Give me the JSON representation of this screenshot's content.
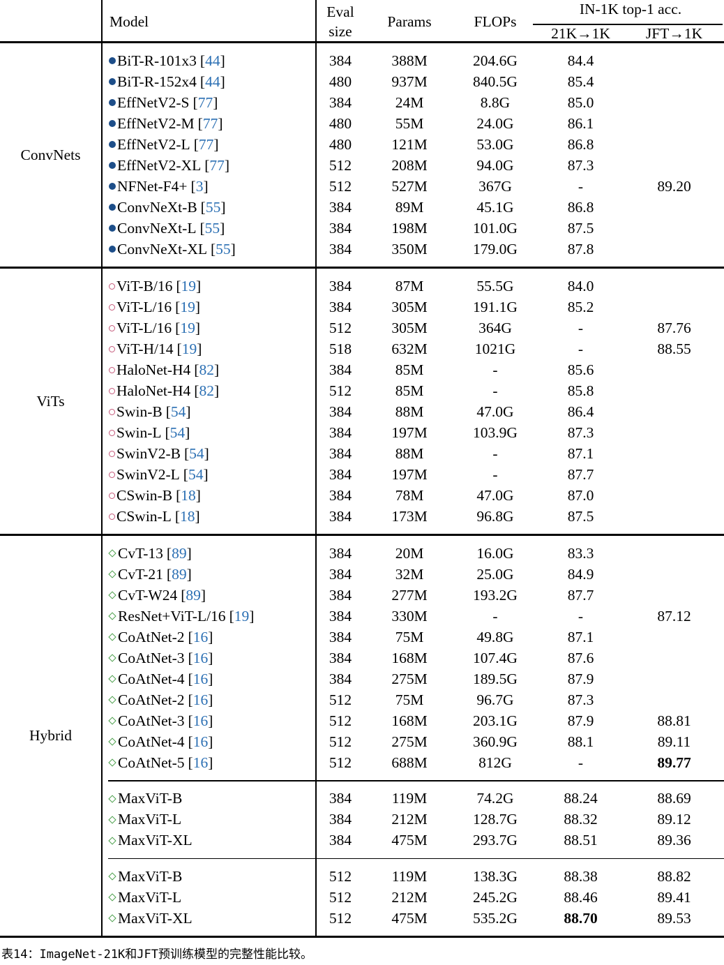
{
  "header": {
    "model": "Model",
    "eval1": "Eval",
    "eval2": "size",
    "params": "Params",
    "flops": "FLOPs",
    "acc_title": "IN-1K top-1 acc.",
    "col_21k": "21K→1K",
    "col_jft": "JFT→1K"
  },
  "colors": {
    "convnet_marker": "#1d4e89",
    "vit_marker": "#c5597a",
    "hybrid_marker": "#4ca04c",
    "citation": "#2b6fb3",
    "text": "#000000"
  },
  "groups": [
    {
      "label": "ConvNets",
      "marker": "convnet",
      "blocks": [
        [
          {
            "model": "BiT-R-101x3",
            "cite": "44",
            "eval": "384",
            "params": "388M",
            "flops": "204.6G",
            "acc21k": "84.4",
            "accjft": ""
          },
          {
            "model": "BiT-R-152x4",
            "cite": "44",
            "eval": "480",
            "params": "937M",
            "flops": "840.5G",
            "acc21k": "85.4",
            "accjft": ""
          },
          {
            "model": "EffNetV2-S",
            "cite": "77",
            "eval": "384",
            "params": "24M",
            "flops": "8.8G",
            "acc21k": "85.0",
            "accjft": ""
          },
          {
            "model": "EffNetV2-M",
            "cite": "77",
            "eval": "480",
            "params": "55M",
            "flops": "24.0G",
            "acc21k": "86.1",
            "accjft": ""
          },
          {
            "model": "EffNetV2-L",
            "cite": "77",
            "eval": "480",
            "params": "121M",
            "flops": "53.0G",
            "acc21k": "86.8",
            "accjft": ""
          },
          {
            "model": "EffNetV2-XL",
            "cite": "77",
            "eval": "512",
            "params": "208M",
            "flops": "94.0G",
            "acc21k": "87.3",
            "accjft": ""
          },
          {
            "model": "NFNet-F4+",
            "cite": "3",
            "eval": "512",
            "params": "527M",
            "flops": "367G",
            "acc21k": "-",
            "accjft": "89.20"
          },
          {
            "model": "ConvNeXt-B",
            "cite": "55",
            "eval": "384",
            "params": "89M",
            "flops": "45.1G",
            "acc21k": "86.8",
            "accjft": ""
          },
          {
            "model": "ConvNeXt-L",
            "cite": "55",
            "eval": "384",
            "params": "198M",
            "flops": "101.0G",
            "acc21k": "87.5",
            "accjft": ""
          },
          {
            "model": "ConvNeXt-XL",
            "cite": "55",
            "eval": "384",
            "params": "350M",
            "flops": "179.0G",
            "acc21k": "87.8",
            "accjft": ""
          }
        ]
      ]
    },
    {
      "label": "ViTs",
      "marker": "vit",
      "blocks": [
        [
          {
            "model": "ViT-B/16",
            "cite": "19",
            "eval": "384",
            "params": "87M",
            "flops": "55.5G",
            "acc21k": "84.0",
            "accjft": ""
          },
          {
            "model": "ViT-L/16",
            "cite": "19",
            "eval": "384",
            "params": "305M",
            "flops": "191.1G",
            "acc21k": "85.2",
            "accjft": ""
          },
          {
            "model": "ViT-L/16",
            "cite": "19",
            "eval": "512",
            "params": "305M",
            "flops": "364G",
            "acc21k": "-",
            "accjft": "87.76"
          },
          {
            "model": "ViT-H/14",
            "cite": "19",
            "eval": "518",
            "params": "632M",
            "flops": "1021G",
            "acc21k": "-",
            "accjft": "88.55"
          },
          {
            "model": "HaloNet-H4",
            "cite": "82",
            "eval": "384",
            "params": "85M",
            "flops": "-",
            "acc21k": "85.6",
            "accjft": ""
          },
          {
            "model": "HaloNet-H4",
            "cite": "82",
            "eval": "512",
            "params": "85M",
            "flops": "-",
            "acc21k": "85.8",
            "accjft": ""
          },
          {
            "model": "Swin-B",
            "cite": "54",
            "eval": "384",
            "params": "88M",
            "flops": "47.0G",
            "acc21k": "86.4",
            "accjft": ""
          },
          {
            "model": "Swin-L",
            "cite": "54",
            "eval": "384",
            "params": "197M",
            "flops": "103.9G",
            "acc21k": "87.3",
            "accjft": ""
          },
          {
            "model": "SwinV2-B",
            "cite": "54",
            "eval": "384",
            "params": "88M",
            "flops": "-",
            "acc21k": "87.1",
            "accjft": ""
          },
          {
            "model": "SwinV2-L",
            "cite": "54",
            "eval": "384",
            "params": "197M",
            "flops": "-",
            "acc21k": "87.7",
            "accjft": ""
          },
          {
            "model": "CSwin-B",
            "cite": "18",
            "eval": "384",
            "params": "78M",
            "flops": "47.0G",
            "acc21k": "87.0",
            "accjft": ""
          },
          {
            "model": "CSwin-L",
            "cite": "18",
            "eval": "384",
            "params": "173M",
            "flops": "96.8G",
            "acc21k": "87.5",
            "accjft": ""
          }
        ]
      ]
    },
    {
      "label": "Hybrid",
      "marker": "hybrid",
      "blocks": [
        [
          {
            "model": "CvT-13",
            "cite": "89",
            "eval": "384",
            "params": "20M",
            "flops": "16.0G",
            "acc21k": "83.3",
            "accjft": ""
          },
          {
            "model": "CvT-21",
            "cite": "89",
            "eval": "384",
            "params": "32M",
            "flops": "25.0G",
            "acc21k": "84.9",
            "accjft": ""
          },
          {
            "model": "CvT-W24",
            "cite": "89",
            "eval": "384",
            "params": "277M",
            "flops": "193.2G",
            "acc21k": "87.7",
            "accjft": ""
          },
          {
            "model": "ResNet+ViT-L/16",
            "cite": "19",
            "eval": "384",
            "params": "330M",
            "flops": "-",
            "acc21k": "-",
            "accjft": "87.12"
          },
          {
            "model": "CoAtNet-2",
            "cite": "16",
            "eval": "384",
            "params": "75M",
            "flops": "49.8G",
            "acc21k": "87.1",
            "accjft": ""
          },
          {
            "model": "CoAtNet-3",
            "cite": "16",
            "eval": "384",
            "params": "168M",
            "flops": "107.4G",
            "acc21k": "87.6",
            "accjft": ""
          },
          {
            "model": "CoAtNet-4",
            "cite": "16",
            "eval": "384",
            "params": "275M",
            "flops": "189.5G",
            "acc21k": "87.9",
            "accjft": ""
          },
          {
            "model": "CoAtNet-2",
            "cite": "16",
            "eval": "512",
            "params": "75M",
            "flops": "96.7G",
            "acc21k": "87.3",
            "accjft": ""
          },
          {
            "model": "CoAtNet-3",
            "cite": "16",
            "eval": "512",
            "params": "168M",
            "flops": "203.1G",
            "acc21k": "87.9",
            "accjft": "88.81"
          },
          {
            "model": "CoAtNet-4",
            "cite": "16",
            "eval": "512",
            "params": "275M",
            "flops": "360.9G",
            "acc21k": "88.1",
            "accjft": "89.11"
          },
          {
            "model": "CoAtNet-5",
            "cite": "16",
            "eval": "512",
            "params": "688M",
            "flops": "812G",
            "acc21k": "-",
            "accjft": "89.77",
            "bold": "jft"
          }
        ],
        [
          {
            "model": "MaxViT-B",
            "cite": "",
            "eval": "384",
            "params": "119M",
            "flops": "74.2G",
            "acc21k": "88.24",
            "accjft": "88.69"
          },
          {
            "model": "MaxViT-L",
            "cite": "",
            "eval": "384",
            "params": "212M",
            "flops": "128.7G",
            "acc21k": "88.32",
            "accjft": "89.12"
          },
          {
            "model": "MaxViT-XL",
            "cite": "",
            "eval": "384",
            "params": "475M",
            "flops": "293.7G",
            "acc21k": "88.51",
            "accjft": "89.36"
          }
        ],
        [
          {
            "model": "MaxViT-B",
            "cite": "",
            "eval": "512",
            "params": "119M",
            "flops": "138.3G",
            "acc21k": "88.38",
            "accjft": "88.82"
          },
          {
            "model": "MaxViT-L",
            "cite": "",
            "eval": "512",
            "params": "212M",
            "flops": "245.2G",
            "acc21k": "88.46",
            "accjft": "89.41"
          },
          {
            "model": "MaxViT-XL",
            "cite": "",
            "eval": "512",
            "params": "475M",
            "flops": "535.2G",
            "acc21k": "88.70",
            "accjft": "89.53",
            "bold": "21k"
          }
        ]
      ]
    }
  ],
  "caption": {
    "text": "表14：ImageNet-21K和JFT预训练模型的完整性能比较。"
  }
}
